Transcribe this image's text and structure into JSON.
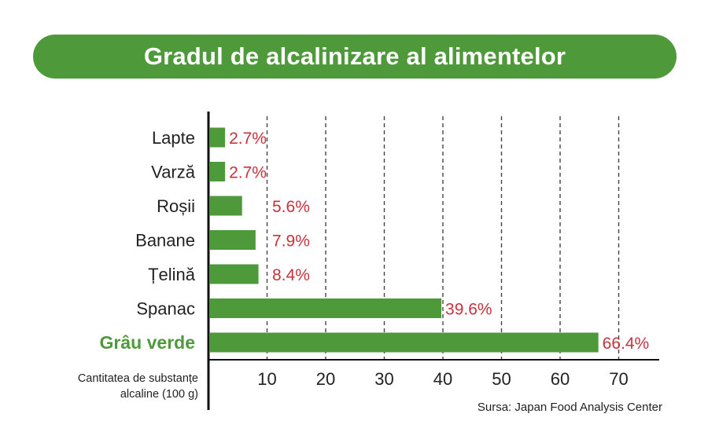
{
  "chart_data": {
    "type": "bar",
    "orientation": "horizontal",
    "title": "Gradul de alcalinizare al alimentelor",
    "categories": [
      "Lapte",
      "Varză",
      "Roșii",
      "Banane",
      "Țelină",
      "Spanac",
      "Grâu verde"
    ],
    "values": [
      2.7,
      2.7,
      5.6,
      7.9,
      8.4,
      39.6,
      66.4
    ],
    "value_labels": [
      "2.7%",
      "2.7%",
      "5.6%",
      "7.9%",
      "8.4%",
      "39.6%",
      "66.4%"
    ],
    "highlight_category": "Grâu verde",
    "xticks": [
      10,
      20,
      30,
      40,
      50,
      60,
      70
    ],
    "xlim": [
      0,
      76
    ],
    "xlabel": "Cantitatea de substanțe alcaline (100 g)",
    "xlabel_lines": [
      "Cantitatea de substanțe",
      "alcaline (100 g)"
    ],
    "grid": "vertical-dashed",
    "source": "Sursa: Japan Food Analysis Center"
  },
  "colors": {
    "bar": "#4e9a3b",
    "banner": "#4e9a3b",
    "value_label": "#c8323c",
    "highlight_label": "#4e9a3b",
    "axis": "#111111",
    "grid": "#444444"
  }
}
